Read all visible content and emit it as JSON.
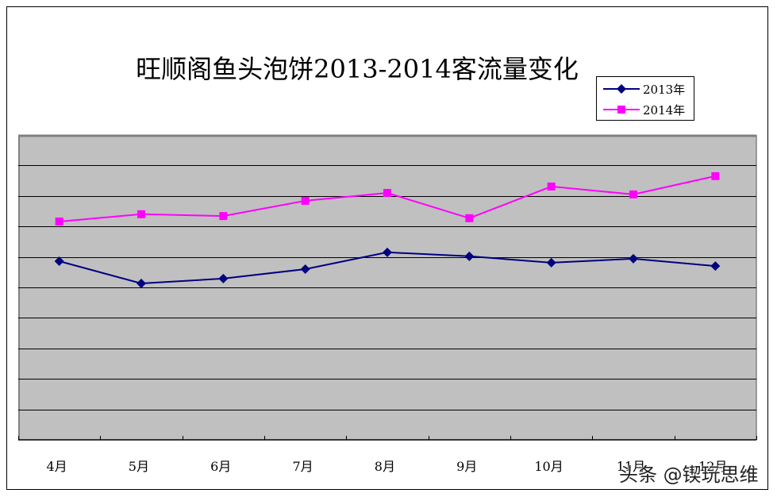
{
  "chart_data": {
    "type": "line",
    "title": "旺顺阁鱼头泡饼2013-2014客流量变化",
    "xlabel": "",
    "ylabel": "",
    "categories": [
      "4月",
      "5月",
      "6月",
      "7月",
      "8月",
      "9月",
      "10月",
      "11月",
      "12月"
    ],
    "series": [
      {
        "name": "2013年",
        "color": "#000080",
        "marker": "diamond",
        "values": [
          5.86,
          5.13,
          5.29,
          5.6,
          6.15,
          6.02,
          5.81,
          5.94,
          5.7
        ]
      },
      {
        "name": "2014年",
        "color": "#FF00FF",
        "marker": "square",
        "values": [
          7.16,
          7.4,
          7.34,
          7.84,
          8.1,
          7.27,
          8.31,
          8.05,
          8.65
        ]
      }
    ],
    "ylim": [
      0,
      10
    ],
    "y_units_note": "relative gridline bands (no y-axis tick labels shown)",
    "grid": true,
    "gridline_count": 9,
    "plot_background": "#C0C0C0",
    "legend_position": "top-right"
  },
  "legend": {
    "items": [
      {
        "label": "2013年",
        "color": "#000080"
      },
      {
        "label": "2014年",
        "color": "#FF00FF"
      }
    ]
  },
  "watermark": {
    "text": "头条 @锲玩思维"
  }
}
